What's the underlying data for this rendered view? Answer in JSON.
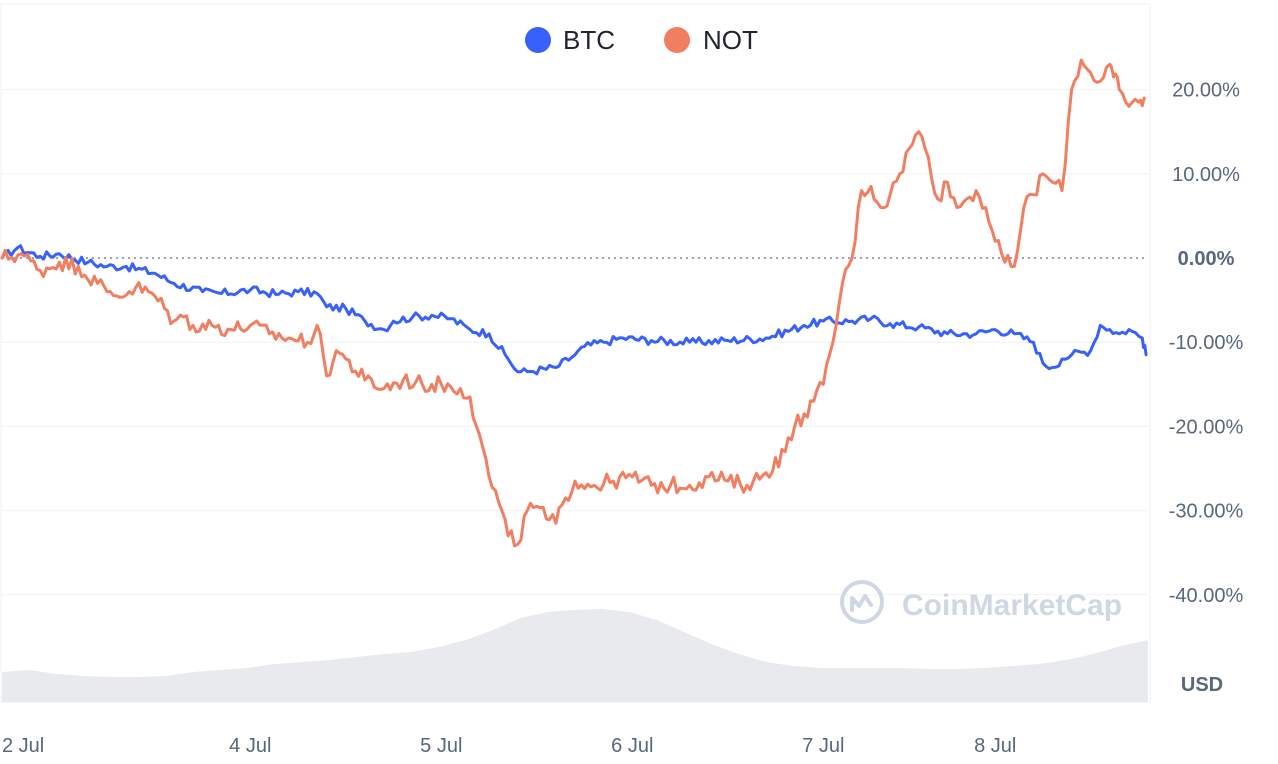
{
  "chart_data": {
    "type": "line",
    "unit_label": "USD",
    "watermark": "CoinMarketCap",
    "ylim": [
      -45,
      25
    ],
    "y_ticks": [
      "20.00%",
      "10.00%",
      "0.00%",
      "-10.00%",
      "-20.00%",
      "-30.00%",
      "-40.00%"
    ],
    "y_tick_values": [
      20,
      10,
      0,
      -10,
      -20,
      -30,
      -40
    ],
    "x_ticks": [
      "2 Jul",
      "4 Jul",
      "5 Jul",
      "6 Jul",
      "7 Jul",
      "8 Jul"
    ],
    "x_tick_values": [
      0,
      1.3,
      2.3,
      3.3,
      4.3,
      5.2
    ],
    "x_end": 6.0,
    "legend_placement": "top-center",
    "grid": true,
    "series": [
      {
        "name": "BTC",
        "color": "#3861fb",
        "x": [
          0,
          0.08,
          0.2,
          0.3,
          0.45,
          0.55,
          0.65,
          0.8,
          0.9,
          1.05,
          1.15,
          1.3,
          1.45,
          1.55,
          1.65,
          1.7,
          1.8,
          1.9,
          2.0,
          2.05,
          2.15,
          2.25,
          2.35,
          2.45,
          2.55,
          2.65,
          2.7,
          2.75,
          2.9,
          3.0,
          3.05,
          3.15,
          3.25,
          3.4,
          3.6,
          3.8,
          4.0,
          4.2,
          4.3,
          4.45,
          4.55,
          4.65,
          4.8,
          4.95,
          5.1,
          5.2,
          5.3,
          5.4,
          5.45,
          5.5,
          5.55,
          5.6,
          5.7,
          5.75,
          5.8,
          5.85,
          5.9,
          5.97,
          5.99
        ],
        "values": [
          0,
          1.2,
          0.2,
          0.5,
          -0.5,
          -1.0,
          -1.0,
          -1.8,
          -3.0,
          -4.0,
          -4.2,
          -3.8,
          -4.3,
          -4.0,
          -4.2,
          -5.8,
          -6.0,
          -7.5,
          -8.5,
          -7.5,
          -7.0,
          -6.8,
          -7.2,
          -8.5,
          -9.0,
          -12.0,
          -13.5,
          -13.5,
          -13.0,
          -11.5,
          -10.5,
          -10.0,
          -9.5,
          -9.8,
          -10.0,
          -9.8,
          -9.5,
          -8.0,
          -7.5,
          -7.5,
          -7.2,
          -7.8,
          -8.2,
          -9.0,
          -9.0,
          -8.5,
          -9.0,
          -10.0,
          -12.5,
          -13.0,
          -12.0,
          -11.5,
          -11.0,
          -8.0,
          -8.5,
          -9.0,
          -8.5,
          -9.5,
          -11.5
        ]
      },
      {
        "name": "NOT",
        "color": "#f27e61",
        "x": [
          0,
          0.1,
          0.2,
          0.3,
          0.4,
          0.5,
          0.55,
          0.6,
          0.7,
          0.8,
          0.9,
          0.95,
          1.0,
          1.1,
          1.2,
          1.3,
          1.4,
          1.5,
          1.6,
          1.65,
          1.7,
          1.75,
          1.8,
          1.9,
          2.0,
          2.1,
          2.2,
          2.3,
          2.4,
          2.45,
          2.5,
          2.55,
          2.6,
          2.65,
          2.7,
          2.75,
          2.8,
          2.85,
          2.9,
          2.95,
          3.0,
          3.1,
          3.2,
          3.3,
          3.4,
          3.5,
          3.6,
          3.7,
          3.8,
          3.9,
          4.0,
          4.1,
          4.15,
          4.2,
          4.25,
          4.3,
          4.35,
          4.4,
          4.45,
          4.5,
          4.55,
          4.6,
          4.65,
          4.7,
          4.75,
          4.8,
          4.85,
          4.9,
          4.95,
          5.0,
          5.05,
          5.1,
          5.15,
          5.2,
          5.25,
          5.3,
          5.35,
          5.4,
          5.45,
          5.5,
          5.55,
          5.6,
          5.65,
          5.7,
          5.75,
          5.8,
          5.82,
          5.85,
          5.9,
          5.95,
          5.98
        ],
        "values": [
          0,
          0.5,
          -1.5,
          -0.5,
          -1.0,
          -3.0,
          -4.0,
          -4.5,
          -3.5,
          -4.5,
          -7.5,
          -7.0,
          -8.0,
          -8.0,
          -8.5,
          -8.0,
          -9.0,
          -9.5,
          -10.0,
          -8.0,
          -14.0,
          -11.0,
          -12.0,
          -14.5,
          -15.5,
          -14.5,
          -15.0,
          -15.0,
          -15.5,
          -16.5,
          -21.0,
          -26.0,
          -29.0,
          -33.0,
          -34.0,
          -30.0,
          -29.5,
          -31.0,
          -31.5,
          -28.5,
          -26.5,
          -27.0,
          -26.5,
          -26.0,
          -27.0,
          -27.0,
          -27.0,
          -26.0,
          -26.5,
          -27.0,
          -25.5,
          -23.0,
          -20.0,
          -18.5,
          -17.0,
          -15.0,
          -10.0,
          -3.0,
          0,
          8.0,
          8.5,
          6.0,
          7.5,
          10.0,
          13.0,
          15.0,
          12.0,
          7.0,
          9.0,
          6.0,
          7.0,
          8.0,
          6.0,
          2.0,
          -0.5,
          -1.0,
          6.0,
          7.5,
          10.0,
          9.0,
          8.0,
          20.0,
          23.5,
          22.0,
          21.0,
          23.0,
          21.5,
          20.0,
          18.0,
          18.5,
          19.0
        ]
      }
    ],
    "volume": [
      0.3,
      0.32,
      0.28,
      0.26,
      0.25,
      0.25,
      0.26,
      0.3,
      0.32,
      0.34,
      0.38,
      0.4,
      0.42,
      0.45,
      0.48,
      0.5,
      0.55,
      0.62,
      0.72,
      0.84,
      0.9,
      0.92,
      0.93,
      0.9,
      0.82,
      0.7,
      0.58,
      0.48,
      0.4,
      0.36,
      0.34,
      0.34,
      0.34,
      0.34,
      0.33,
      0.33,
      0.34,
      0.36,
      0.38,
      0.42,
      0.48,
      0.56,
      0.62
    ]
  }
}
